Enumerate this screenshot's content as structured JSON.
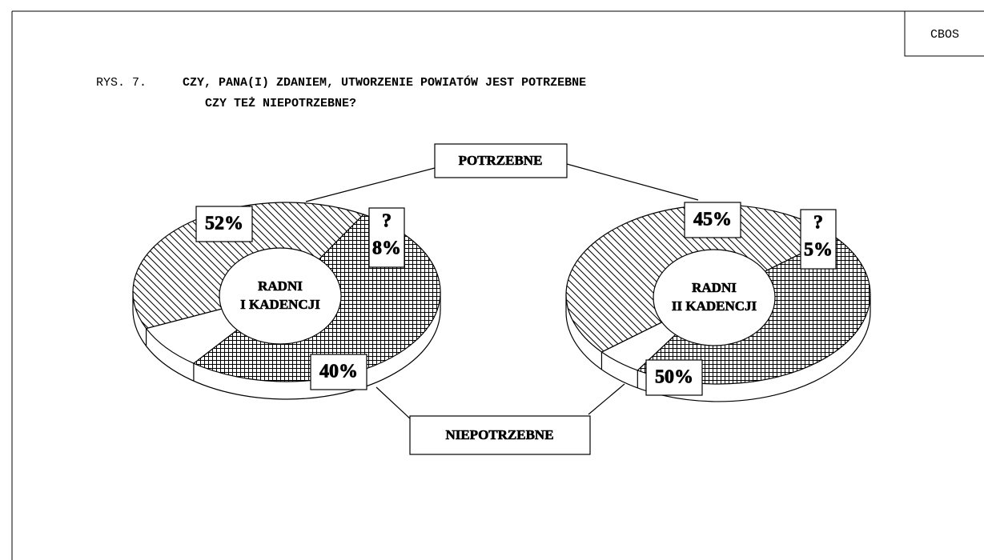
{
  "source": "CBOS",
  "figure_label": "RYS. 7.",
  "title": [
    "CZY, PANA(I) ZDANIEM, UTWORZENIE POWIATÓW JEST POTRZEBNE",
    "CZY TEŻ NIEPOTRZEBNE?"
  ],
  "callouts": [
    "POTRZEBNE",
    "NIEPOTRZEBNE"
  ],
  "chart_data": [
    {
      "type": "pie",
      "center_label": [
        "RADNI",
        "I KADENCJI"
      ],
      "unknown_label": "?",
      "values": [
        52,
        8,
        40
      ],
      "value_labels": [
        "52%",
        "8%",
        "40%"
      ],
      "fills": [
        "crosshatch",
        "white",
        "hatch"
      ]
    },
    {
      "type": "pie",
      "center_label": [
        "RADNI",
        "II KADENCJI"
      ],
      "unknown_label": "?",
      "values": [
        45,
        5,
        50
      ],
      "value_labels": [
        "45%",
        "5%",
        "50%"
      ],
      "fills": [
        "crosshatch",
        "white",
        "hatch"
      ]
    }
  ]
}
